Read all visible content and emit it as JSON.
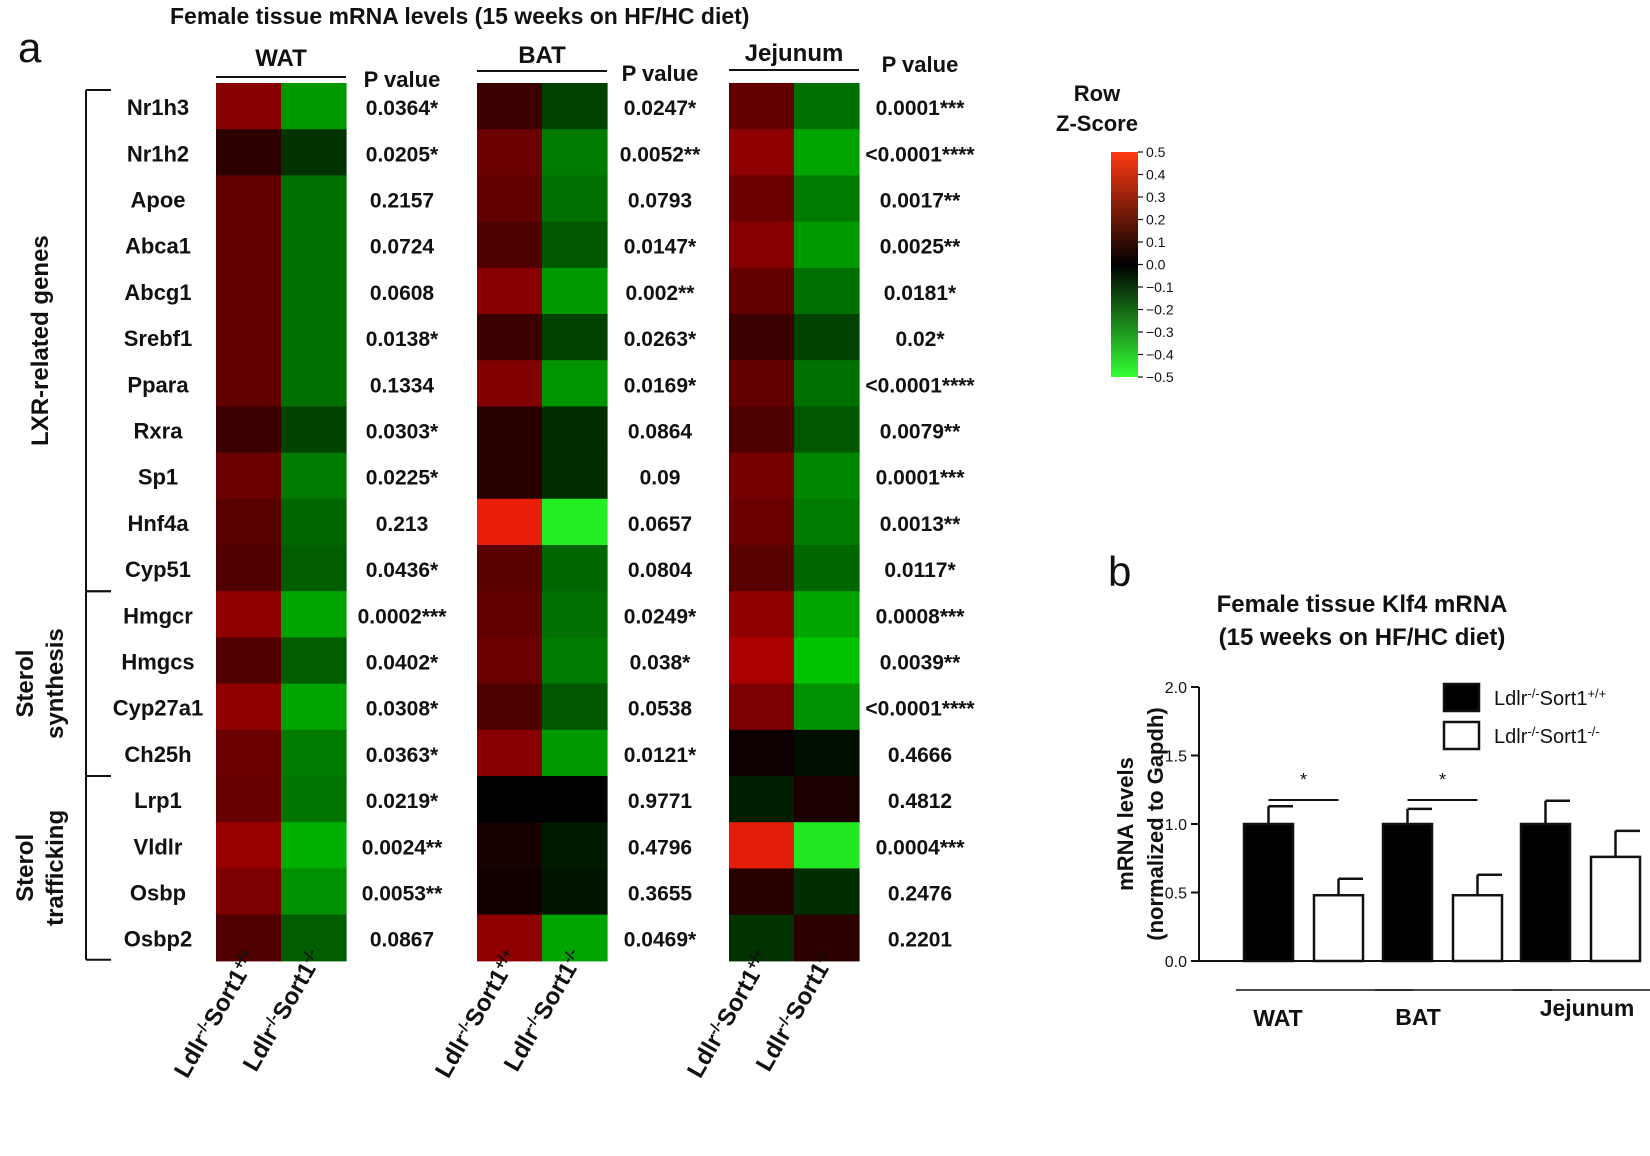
{
  "figure": {
    "panel_a_letter": "a",
    "panel_b_letter": "b"
  },
  "chart_data": [
    {
      "type": "heatmap",
      "title": "Female tissue mRNA  levels (15 weeks on HF/HC diet)",
      "tissues": [
        "WAT",
        "BAT",
        "Jejunum"
      ],
      "pvalue_header": "P value",
      "genotype_labels": [
        "Ldlr-/-Sort1+/+",
        "Ldlr-/-Sort1-/-"
      ],
      "genotype_base": "Ldlr",
      "genotype_sort": "Sort1",
      "genotype_sup1": "-/-",
      "genotype_sup_wt": "+/+",
      "genotype_sup_ko": "-/-",
      "genes": [
        "Nr1h3",
        "Nr1h2",
        "Apoe",
        "Abca1",
        "Abcg1",
        "Srebf1",
        "Ppara",
        "Rxra",
        "Sp1",
        "Hnf4a",
        "Cyp51",
        "Hmgcr",
        "Hmgcs",
        "Cyp27a1",
        "Ch25h",
        "Lrp1",
        "Vldlr",
        "Osbp",
        "Osbp2"
      ],
      "groups": [
        {
          "label": "LXR-related  genes",
          "lines": [
            "LXR-related  genes"
          ],
          "start": 0,
          "end": 10
        },
        {
          "label": "Sterol synthesis",
          "lines": [
            "Sterol",
            "synthesis"
          ],
          "start": 11,
          "end": 14
        },
        {
          "label": "Sterol trafficking",
          "lines": [
            "Sterol",
            "trafficking"
          ],
          "start": 15,
          "end": 18
        }
      ],
      "zscore": {
        "WAT": [
          0.3,
          0.1,
          0.22,
          0.22,
          0.22,
          0.22,
          0.22,
          0.13,
          0.24,
          0.2,
          0.18,
          0.32,
          0.18,
          0.32,
          0.24,
          0.23,
          0.34,
          0.28,
          0.18
        ],
        "BAT": [
          0.13,
          0.24,
          0.22,
          0.17,
          0.3,
          0.13,
          0.29,
          0.09,
          0.09,
          0.43,
          0.2,
          0.22,
          0.24,
          0.17,
          0.3,
          0.0,
          0.05,
          0.04,
          0.32
        ],
        "Jejunum": [
          0.22,
          0.32,
          0.24,
          0.3,
          0.22,
          0.13,
          0.22,
          0.17,
          0.26,
          0.24,
          0.2,
          0.32,
          0.38,
          0.28,
          0.03,
          -0.06,
          0.42,
          0.09,
          -0.1
        ]
      },
      "pvalues": {
        "WAT": [
          "0.0364*",
          "0.0205*",
          "0.2157",
          "0.0724",
          "0.0608",
          "0.0138*",
          "0.1334",
          "0.0303*",
          "0.0225*",
          "0.213",
          "0.0436*",
          "0.0002***",
          "0.0402*",
          "0.0308*",
          "0.0363*",
          "0.0219*",
          "0.0024**",
          "0.0053**",
          "0.0867"
        ],
        "BAT": [
          "0.0247*",
          "0.0052**",
          "0.0793",
          "0.0147*",
          "0.002**",
          "0.0263*",
          "0.0169*",
          "0.0864",
          "0.09",
          "0.0657",
          "0.0804",
          "0.0249*",
          "0.038*",
          "0.0538",
          "0.0121*",
          "0.9771",
          "0.4796",
          "0.3655",
          "0.0469*"
        ],
        "Jejunum": [
          "0.0001***",
          "<0.0001****",
          "0.0017**",
          "0.0025**",
          "0.0181*",
          "0.02*",
          "<0.0001****",
          "0.0079**",
          "0.0001***",
          "0.0013**",
          "0.0117*",
          "0.0008***",
          "0.0039**",
          "<0.0001****",
          "0.4666",
          "0.4812",
          "0.0004***",
          "0.2476",
          "0.2201"
        ]
      },
      "colorbar": {
        "title_lines": [
          "Row",
          "Z-Score"
        ],
        "range": [
          -0.5,
          0.5
        ],
        "ticks": [
          "0.5",
          "0.4",
          "0.3",
          "0.2",
          "0.1",
          "0.0",
          "−0.1",
          "−0.2",
          "−0.3",
          "−0.4",
          "−0.5"
        ],
        "high_color": "#ff3a12",
        "mid_color": "#000000",
        "low_color": "#33ff33"
      },
      "colors": {
        "red": "#c00000",
        "green": "#00dd00"
      }
    },
    {
      "type": "bar",
      "title_lines": [
        "Female tissue Klf4 mRNA",
        "(15 weeks on HF/HC  diet)"
      ],
      "ylabel_lines": [
        "mRNA  levels",
        "(normalized to Gapdh)"
      ],
      "categories": [
        "WAT",
        "BAT",
        "Jejunum"
      ],
      "ylim": [
        0,
        2.0
      ],
      "yticks": [
        "0.0",
        "0.5",
        "1.0",
        "1.5",
        "2.0"
      ],
      "series": [
        {
          "name": "Ldlr-/-Sort1+/+",
          "values": [
            1.0,
            1.0,
            1.0
          ],
          "errors": [
            0.13,
            0.11,
            0.17
          ],
          "fill": "#000000"
        },
        {
          "name": "Ldlr-/-Sort1-/-",
          "values": [
            0.48,
            0.48,
            0.76
          ],
          "errors": [
            0.12,
            0.15,
            0.19
          ],
          "fill": "#ffffff"
        }
      ],
      "legend_base": "Ldlr",
      "legend_sort": "Sort1",
      "legend_sup1": "-/-",
      "legend_sup_wt": "+/+",
      "legend_sup_ko": "-/-",
      "significance": [
        {
          "category": "WAT",
          "mark": "*"
        },
        {
          "category": "BAT",
          "mark": "*"
        }
      ]
    }
  ]
}
